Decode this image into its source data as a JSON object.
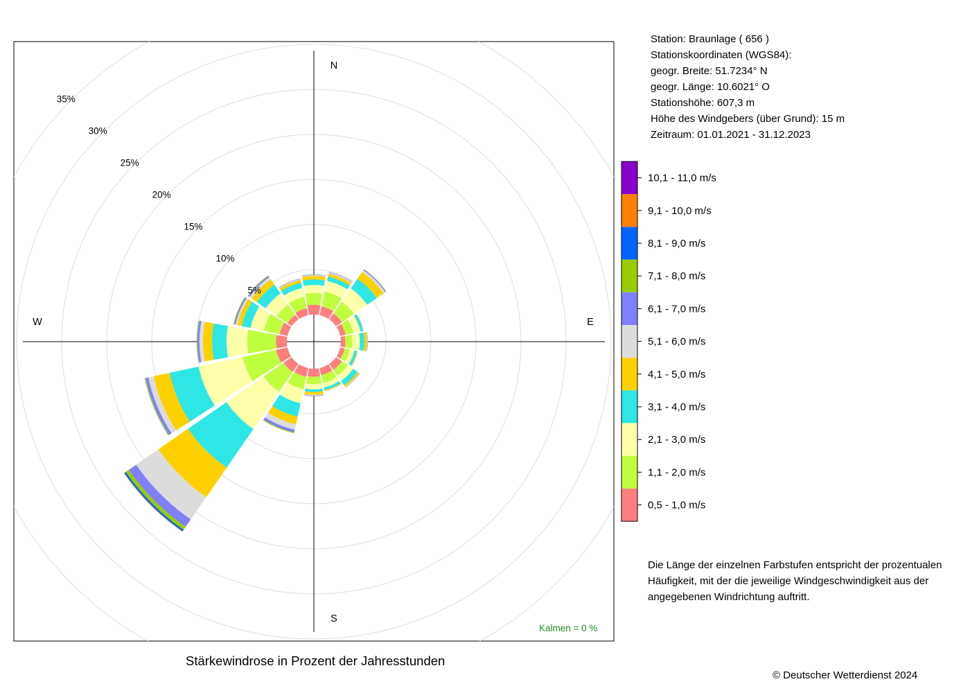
{
  "station": {
    "line1": "Station:  Braunlage  ( 656 )",
    "line2": "Stationskoordinaten (WGS84):",
    "line3": "geogr. Breite: 51.7234° N",
    "line4": "geogr. Länge: 10.6021° O",
    "line5": "Stationshöhe: 607,3 m",
    "line6": "Höhe des Windgebers (über Grund): 15 m",
    "line7": "Zeitraum: 01.01.2021 - 31.12.2023"
  },
  "note": "Die Länge der einzelnen Farbstufen entspricht der prozentualen Häufigkeit, mit der die jeweilige Windgeschwindigkeit aus der angegebenen Windrichtung auftritt.",
  "copyright": "© Deutscher Wetterdienst  2024",
  "kalmen": "Kalmen  =  0 %",
  "chart_data": {
    "type": "wind-rose",
    "title": "Stärkewindrose in Prozent der Jahresstunden",
    "directions": [
      "N",
      "NNE",
      "NE",
      "ENE",
      "E",
      "ESE",
      "SE",
      "SSE",
      "S",
      "SSW",
      "SW",
      "WSW",
      "W",
      "WNW",
      "NW",
      "NNW"
    ],
    "compass_labels": [
      "N",
      "E",
      "S",
      "W"
    ],
    "radial_ticks": [
      5,
      10,
      15,
      20,
      25,
      30,
      35
    ],
    "radial_tick_labels": [
      "5%",
      "10%",
      "15%",
      "20%",
      "25%",
      "30%",
      "35%"
    ],
    "inner_offset_percent": 3,
    "bins": [
      {
        "label": "0,5 - 1,0 m/s",
        "color": "#FF7F7F"
      },
      {
        "label": "1,1 - 2,0 m/s",
        "color": "#BFFF3F"
      },
      {
        "label": "2,1 - 3,0 m/s",
        "color": "#FFFFAA"
      },
      {
        "label": "3,1 - 4,0 m/s",
        "color": "#2EE6E6"
      },
      {
        "label": "4,1 - 5,0 m/s",
        "color": "#FFD000"
      },
      {
        "label": "5,1 - 6,0 m/s",
        "color": "#DCDCDC"
      },
      {
        "label": "6,1 - 7,0 m/s",
        "color": "#8080FF"
      },
      {
        "label": "7,1 - 8,0 m/s",
        "color": "#99CC00"
      },
      {
        "label": "8,1 - 9,0 m/s",
        "color": "#0066FF"
      },
      {
        "label": "9,1 - 10,0 m/s",
        "color": "#FF8000"
      },
      {
        "label": "10,1 - 11,0 m/s",
        "color": "#8800CC"
      }
    ],
    "series": [
      {
        "direction": "N",
        "values": [
          1.1,
          1.3,
          0.9,
          0.6,
          0.4,
          0.1,
          0.05,
          0.02,
          0,
          0,
          0
        ]
      },
      {
        "direction": "NNE",
        "values": [
          1.0,
          1.7,
          1.2,
          0.5,
          0.3,
          0.15,
          0.05,
          0.02,
          0,
          0,
          0
        ]
      },
      {
        "direction": "NE",
        "values": [
          0.8,
          1.6,
          1.8,
          1.3,
          0.9,
          0.25,
          0.1,
          0.04,
          0,
          0,
          0
        ]
      },
      {
        "direction": "ENE",
        "values": [
          0.6,
          0.9,
          0.8,
          0.3,
          0.05,
          0.02,
          0.01,
          0,
          0,
          0,
          0
        ]
      },
      {
        "direction": "E",
        "values": [
          0.5,
          0.8,
          0.8,
          0.5,
          0.3,
          0.06,
          0.03,
          0.01,
          0,
          0,
          0
        ]
      },
      {
        "direction": "ESE",
        "values": [
          0.5,
          0.6,
          0.5,
          0.3,
          0.08,
          0.03,
          0.01,
          0,
          0,
          0,
          0
        ]
      },
      {
        "direction": "SE",
        "values": [
          0.8,
          0.8,
          0.7,
          0.6,
          0.2,
          0.06,
          0.03,
          0.01,
          0,
          0,
          0
        ]
      },
      {
        "direction": "SSE",
        "values": [
          0.8,
          0.9,
          0.5,
          0.3,
          0.1,
          0.03,
          0.01,
          0,
          0,
          0,
          0
        ]
      },
      {
        "direction": "S",
        "values": [
          0.9,
          0.8,
          0.6,
          0.3,
          0.3,
          0.1,
          0.05,
          0.02,
          0,
          0,
          0
        ]
      },
      {
        "direction": "SSW",
        "values": [
          1.0,
          1.4,
          1.6,
          1.5,
          0.9,
          0.6,
          0.3,
          0.1,
          0,
          0,
          0
        ]
      },
      {
        "direction": "SW",
        "values": [
          1.1,
          2.7,
          5.0,
          5.2,
          4.0,
          3.0,
          1.0,
          0.4,
          0.2,
          0.05,
          0
        ]
      },
      {
        "direction": "WSW",
        "values": [
          1.3,
          3.8,
          5.0,
          3.3,
          1.8,
          0.6,
          0.3,
          0.1,
          0.02,
          0,
          0
        ]
      },
      {
        "direction": "W",
        "values": [
          1.2,
          3.2,
          2.3,
          1.6,
          1.0,
          0.4,
          0.2,
          0.07,
          0.02,
          0,
          0
        ]
      },
      {
        "direction": "WNW",
        "values": [
          0.9,
          1.8,
          1.5,
          1.0,
          0.5,
          0.2,
          0.15,
          0.08,
          0,
          0,
          0
        ]
      },
      {
        "direction": "NW",
        "values": [
          0.6,
          1.4,
          1.5,
          1.2,
          0.7,
          0.3,
          0.15,
          0.08,
          0,
          0,
          0
        ]
      },
      {
        "direction": "NNW",
        "values": [
          0.8,
          1.3,
          1.0,
          0.6,
          0.3,
          0.1,
          0.05,
          0.02,
          0,
          0,
          0
        ]
      }
    ]
  }
}
